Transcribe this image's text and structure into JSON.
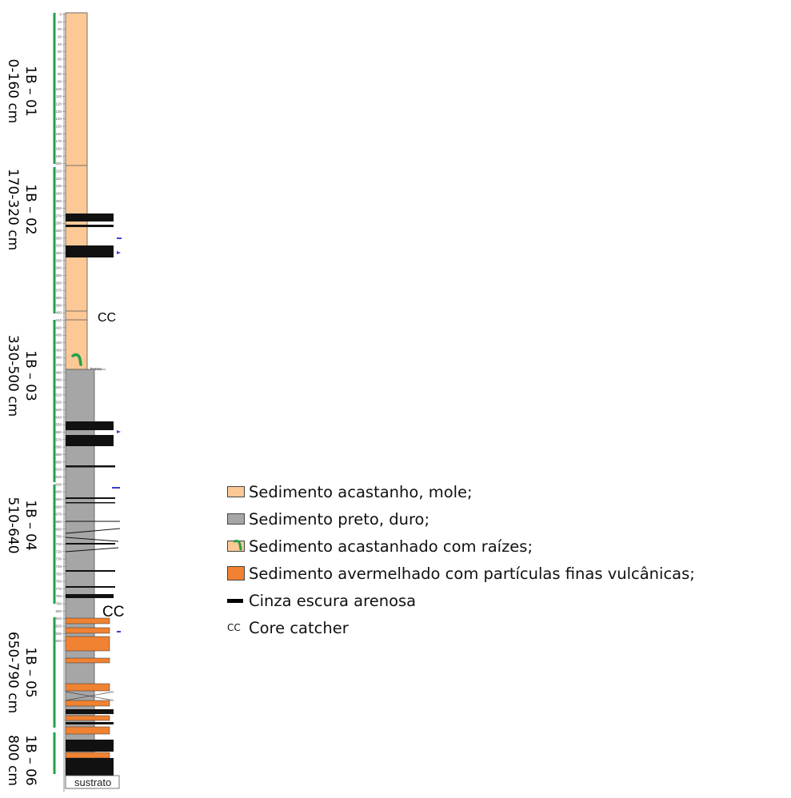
{
  "colors": {
    "soft_brown": "#fbc896",
    "black_hard": "#a6a6a6",
    "red_volcanic": "#f08232",
    "dark_sand": "#111111",
    "section_bar": "#23a14a",
    "roots": "#23a14a"
  },
  "sections": [
    {
      "name": "1B – 01",
      "range": "0-160 cm"
    },
    {
      "name": "1B – 02",
      "range": "170-320 cm"
    },
    {
      "name": "1B – 03",
      "range": "330-500 cm"
    },
    {
      "name": "1B – 04",
      "range": "510-640"
    },
    {
      "name": "1B – 05",
      "range": "650-790 cm"
    },
    {
      "name": "1B – 06",
      "range": "800 cm"
    }
  ],
  "log": {
    "cc_upper": "CC",
    "cc_lower": "CC",
    "tronco_label": "tronco",
    "sustrato_label": "sustrato"
  },
  "legend": [
    {
      "key": "soft_brown",
      "label": "Sedimento acastanho, mole;",
      "swatch": "box",
      "color": "#fbc896"
    },
    {
      "key": "black_hard",
      "label": "Sedimento preto, duro;",
      "swatch": "box",
      "color": "#a6a6a6"
    },
    {
      "key": "roots",
      "label": "Sedimento acastanhado com raízes;",
      "swatch": "roots",
      "color": "#fbc896"
    },
    {
      "key": "red_volcanic",
      "label": "Sedimento avermelhado com partículas finas vulcânicas;",
      "swatch": "box",
      "color": "#f08232"
    },
    {
      "key": "dark_sand",
      "label": "Cinza escura arenosa",
      "swatch": "line",
      "color": "#111111"
    },
    {
      "key": "core_catcher",
      "label": "Core catcher",
      "swatch": "cc",
      "symbol": "CC"
    }
  ]
}
